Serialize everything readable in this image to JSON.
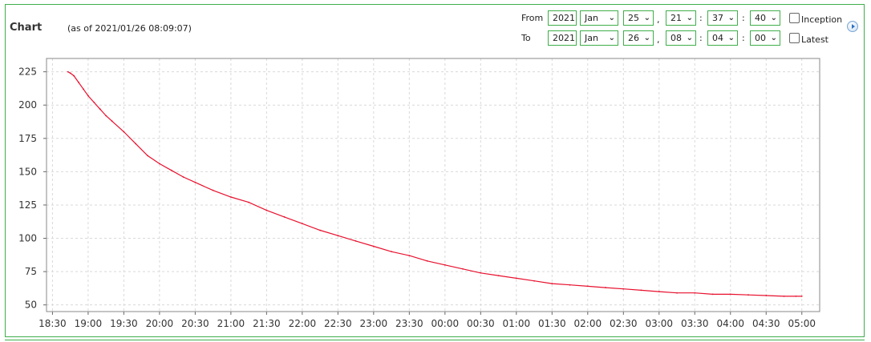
{
  "header": {
    "title": "Chart",
    "as_of": "(as of 2021/01/26 08:09:07)"
  },
  "range": {
    "from": {
      "label": "From",
      "year": "2021",
      "month": "Jan",
      "day": "25",
      "hour": "21",
      "minute": "37",
      "second": "40"
    },
    "to": {
      "label": "To",
      "year": "2021",
      "month": "Jan",
      "day": "26",
      "hour": "08",
      "minute": "04",
      "second": "00"
    },
    "comma": ",",
    "colon": ":",
    "inception_label": "Inception",
    "latest_label": "Latest"
  },
  "icons": {
    "next": "circle-arrow-right-icon",
    "chevron": "chevron-down-icon"
  },
  "colors": {
    "line": "#e8102d",
    "border": "#3fae4a",
    "grid": "#d9d9d9"
  },
  "chart_data": {
    "type": "line",
    "title": "",
    "xlabel": "",
    "ylabel": "",
    "x_ticks": [
      "18:30",
      "19:00",
      "19:30",
      "20:00",
      "20:30",
      "21:00",
      "21:30",
      "22:00",
      "22:30",
      "23:00",
      "23:30",
      "00:00",
      "00:30",
      "01:00",
      "01:30",
      "02:00",
      "02:30",
      "03:00",
      "03:30",
      "04:00",
      "04:30",
      "05:00"
    ],
    "y_ticks": [
      50,
      75,
      100,
      125,
      150,
      175,
      200,
      225
    ],
    "ylim": [
      45,
      235
    ],
    "xlim": [
      "18:25",
      "05:15"
    ],
    "grid": true,
    "series": [
      {
        "x": [
          "18:43",
          "18:45",
          "18:48",
          "18:52",
          "18:56",
          "19:00",
          "19:05",
          "19:10",
          "19:15",
          "19:20",
          "19:30",
          "19:40",
          "19:50",
          "20:00",
          "20:10",
          "20:20",
          "20:30",
          "20:45",
          "21:00",
          "21:15",
          "21:30",
          "21:45",
          "22:00",
          "22:15",
          "22:30",
          "22:45",
          "23:00",
          "23:15",
          "23:30",
          "23:45",
          "00:00",
          "00:15",
          "00:30",
          "00:45",
          "01:00",
          "01:15",
          "01:30",
          "01:45",
          "02:00",
          "02:15",
          "02:30",
          "02:45",
          "03:00",
          "03:15",
          "03:30",
          "03:45",
          "04:00",
          "04:15",
          "04:30",
          "04:45",
          "04:55",
          "05:00"
        ],
        "y": [
          225,
          224,
          222,
          217,
          212,
          207,
          202,
          197,
          192,
          188,
          180,
          171,
          162,
          156,
          151,
          146,
          142,
          136,
          131,
          127,
          121,
          116,
          111,
          106,
          102,
          98,
          94,
          90,
          87,
          83,
          80,
          77,
          74,
          72,
          70,
          68,
          66,
          65,
          64,
          63,
          62,
          61,
          60,
          59,
          59,
          58,
          58,
          57.5,
          57,
          56.5,
          56.5,
          56.5
        ]
      }
    ]
  }
}
